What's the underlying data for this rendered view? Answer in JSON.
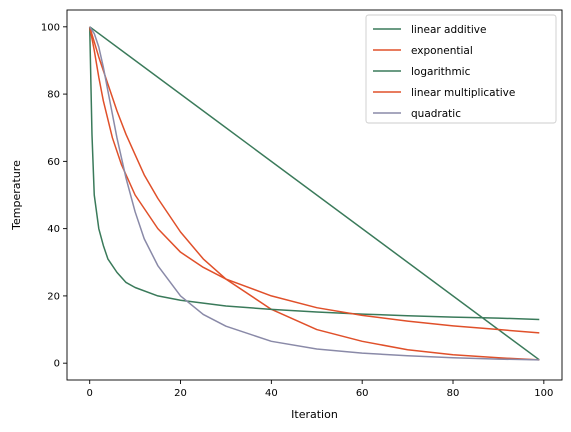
{
  "chart_data": {
    "type": "line",
    "title": "",
    "xlabel": "Iteration",
    "ylabel": "Temperature",
    "xlim": [
      -5,
      104
    ],
    "ylim": [
      -5,
      105
    ],
    "xticks": [
      0,
      20,
      40,
      60,
      80,
      100
    ],
    "yticks": [
      0,
      20,
      40,
      60,
      80,
      100
    ],
    "grid": false,
    "legend_position": "top-right",
    "series": [
      {
        "name": "linear additive",
        "color": "#3a7a5a",
        "x": [
          0,
          99
        ],
        "y": [
          100,
          1
        ]
      },
      {
        "name": "exponential",
        "color": "#e0502a",
        "x": [
          0,
          2,
          4,
          6,
          8,
          10,
          12,
          15,
          20,
          25,
          30,
          40,
          50,
          60,
          70,
          80,
          90,
          99
        ],
        "y": [
          100,
          91,
          83,
          75,
          68,
          62,
          56,
          49,
          39,
          31,
          25,
          16,
          10,
          6.5,
          4,
          2.5,
          1.6,
          1
        ]
      },
      {
        "name": "logarithmic",
        "color": "#3a7a5a",
        "x": [
          0,
          0.5,
          1,
          2,
          3,
          4,
          6,
          8,
          10,
          15,
          20,
          30,
          40,
          50,
          60,
          70,
          80,
          90,
          99
        ],
        "y": [
          100,
          68,
          50,
          40,
          35,
          31,
          27,
          24,
          22.5,
          20,
          18.7,
          17,
          16,
          15.2,
          14.6,
          14.1,
          13.7,
          13.4,
          13
        ]
      },
      {
        "name": "linear multiplicative",
        "color": "#e0502a",
        "x": [
          0,
          1,
          2,
          3,
          5,
          7,
          10,
          15,
          20,
          25,
          30,
          40,
          50,
          60,
          70,
          80,
          90,
          99
        ],
        "y": [
          100,
          93,
          85,
          78,
          67,
          59,
          50,
          40,
          33,
          28.5,
          25,
          20,
          16.5,
          14.2,
          12.5,
          11.1,
          10,
          9
        ]
      },
      {
        "name": "quadratic",
        "color": "#8a8aa8",
        "x": [
          0,
          1,
          2,
          3,
          4,
          5,
          6,
          8,
          10,
          12,
          15,
          20,
          25,
          30,
          40,
          50,
          60,
          70,
          80,
          90,
          99
        ],
        "y": [
          100,
          98,
          94,
          88,
          81,
          74,
          67,
          55,
          45,
          37,
          29,
          20,
          14.5,
          11,
          6.5,
          4.2,
          3,
          2.2,
          1.6,
          1.2,
          1
        ]
      }
    ]
  }
}
